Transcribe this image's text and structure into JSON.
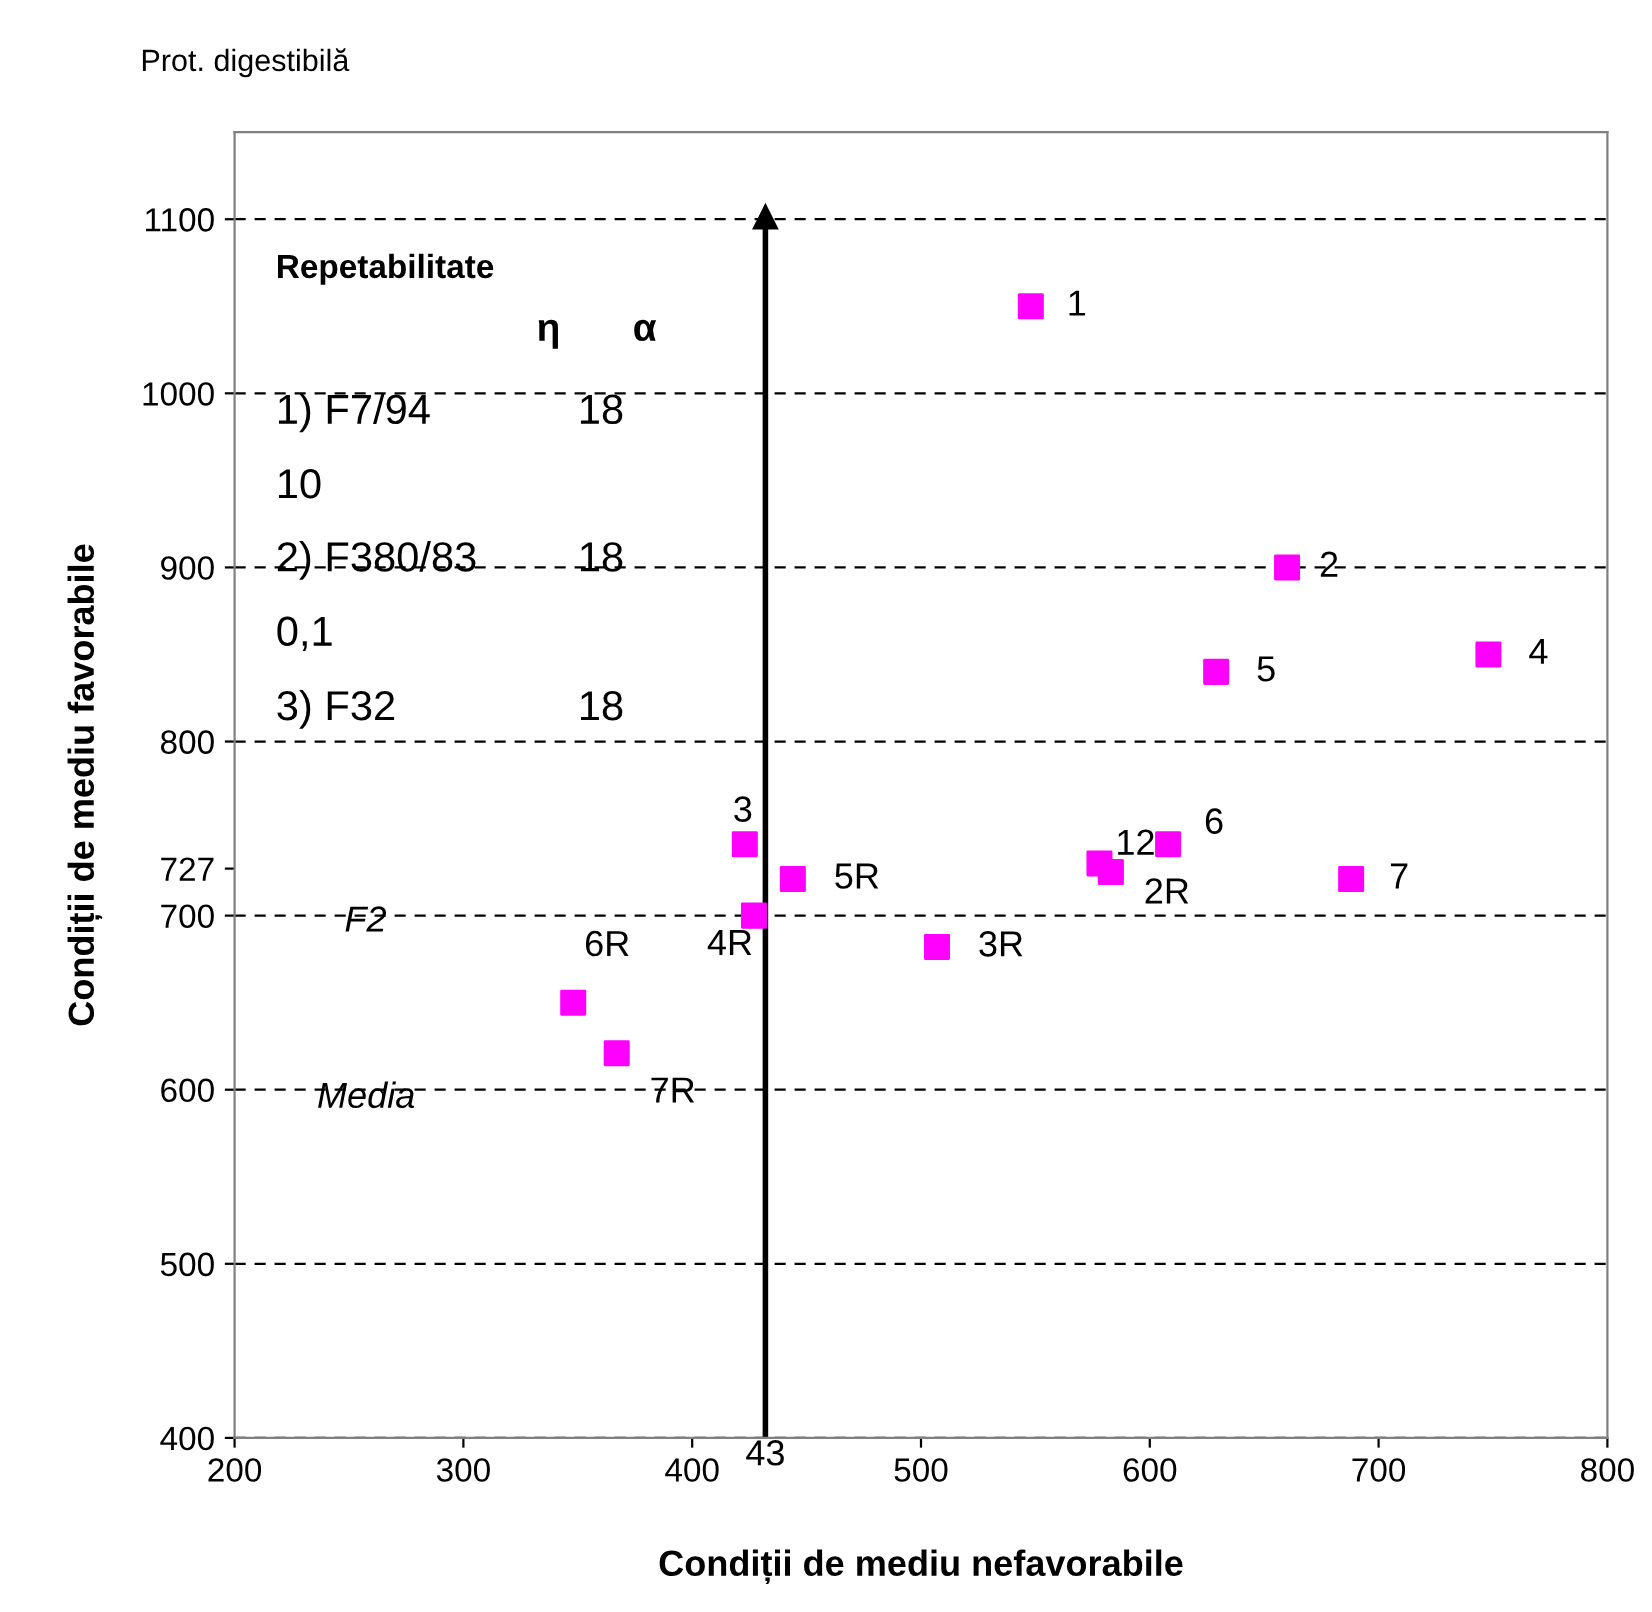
{
  "chart_data": {
    "type": "scatter",
    "title": "Prot. digestibilă",
    "xlabel": "Condiții de mediu nefavorabile",
    "ylabel": "Condiții de mediu favorabile",
    "x": [
      548,
      660,
      748,
      629,
      423,
      444,
      427,
      507,
      578,
      583,
      608,
      688,
      348,
      367
    ],
    "series": [
      {
        "color": "#ff00ff",
        "values": [
          1050,
          900,
          850,
          840,
          741,
          721,
          700,
          682,
          730,
          725,
          741,
          721,
          650,
          621
        ]
      }
    ],
    "marker": "square",
    "xlim": [
      200,
      800
    ],
    "xticks": [
      200,
      300,
      400,
      500,
      600,
      700,
      800
    ],
    "ylim": [
      400,
      1150
    ],
    "yticks": [
      400,
      500,
      600,
      700,
      {
        "value": 727,
        "label": "727"
      },
      800,
      900,
      1000,
      1100
    ],
    "grid": "y",
    "legend": false,
    "ref_lines": [
      {
        "axis": "x",
        "value": 432,
        "color": "#000000"
      }
    ],
    "annotations": [
      {
        "text": "1",
        "x": 548,
        "y": 1050
      },
      {
        "text": "2",
        "x": 660,
        "y": 900
      },
      {
        "text": "4",
        "x": 748,
        "y": 850
      },
      {
        "text": "5",
        "x": 629,
        "y": 840
      },
      {
        "text": "3",
        "x": 423,
        "y": 741
      },
      {
        "text": "5R",
        "x": 444,
        "y": 721
      },
      {
        "text": "4R",
        "x": 427,
        "y": 700
      },
      {
        "text": "3R",
        "x": 507,
        "y": 682
      },
      {
        "text": "12",
        "x": 578,
        "y": 730
      },
      {
        "text": "2R",
        "x": 583,
        "y": 725
      },
      {
        "text": "6",
        "x": 608,
        "y": 741
      },
      {
        "text": "7",
        "x": 688,
        "y": 721
      },
      {
        "text": "6R",
        "x": 348,
        "y": 650
      },
      {
        "text": "7R",
        "x": 367,
        "y": 621
      },
      {
        "text": "43",
        "x": 432,
        "y": 400
      },
      "Repetabilitate",
      "η",
      "α",
      "1) F7/94",
      "18",
      "10",
      "2) F380/83",
      "18",
      "0,1",
      "3) F32",
      "18",
      "F2",
      "Media"
    ]
  }
}
